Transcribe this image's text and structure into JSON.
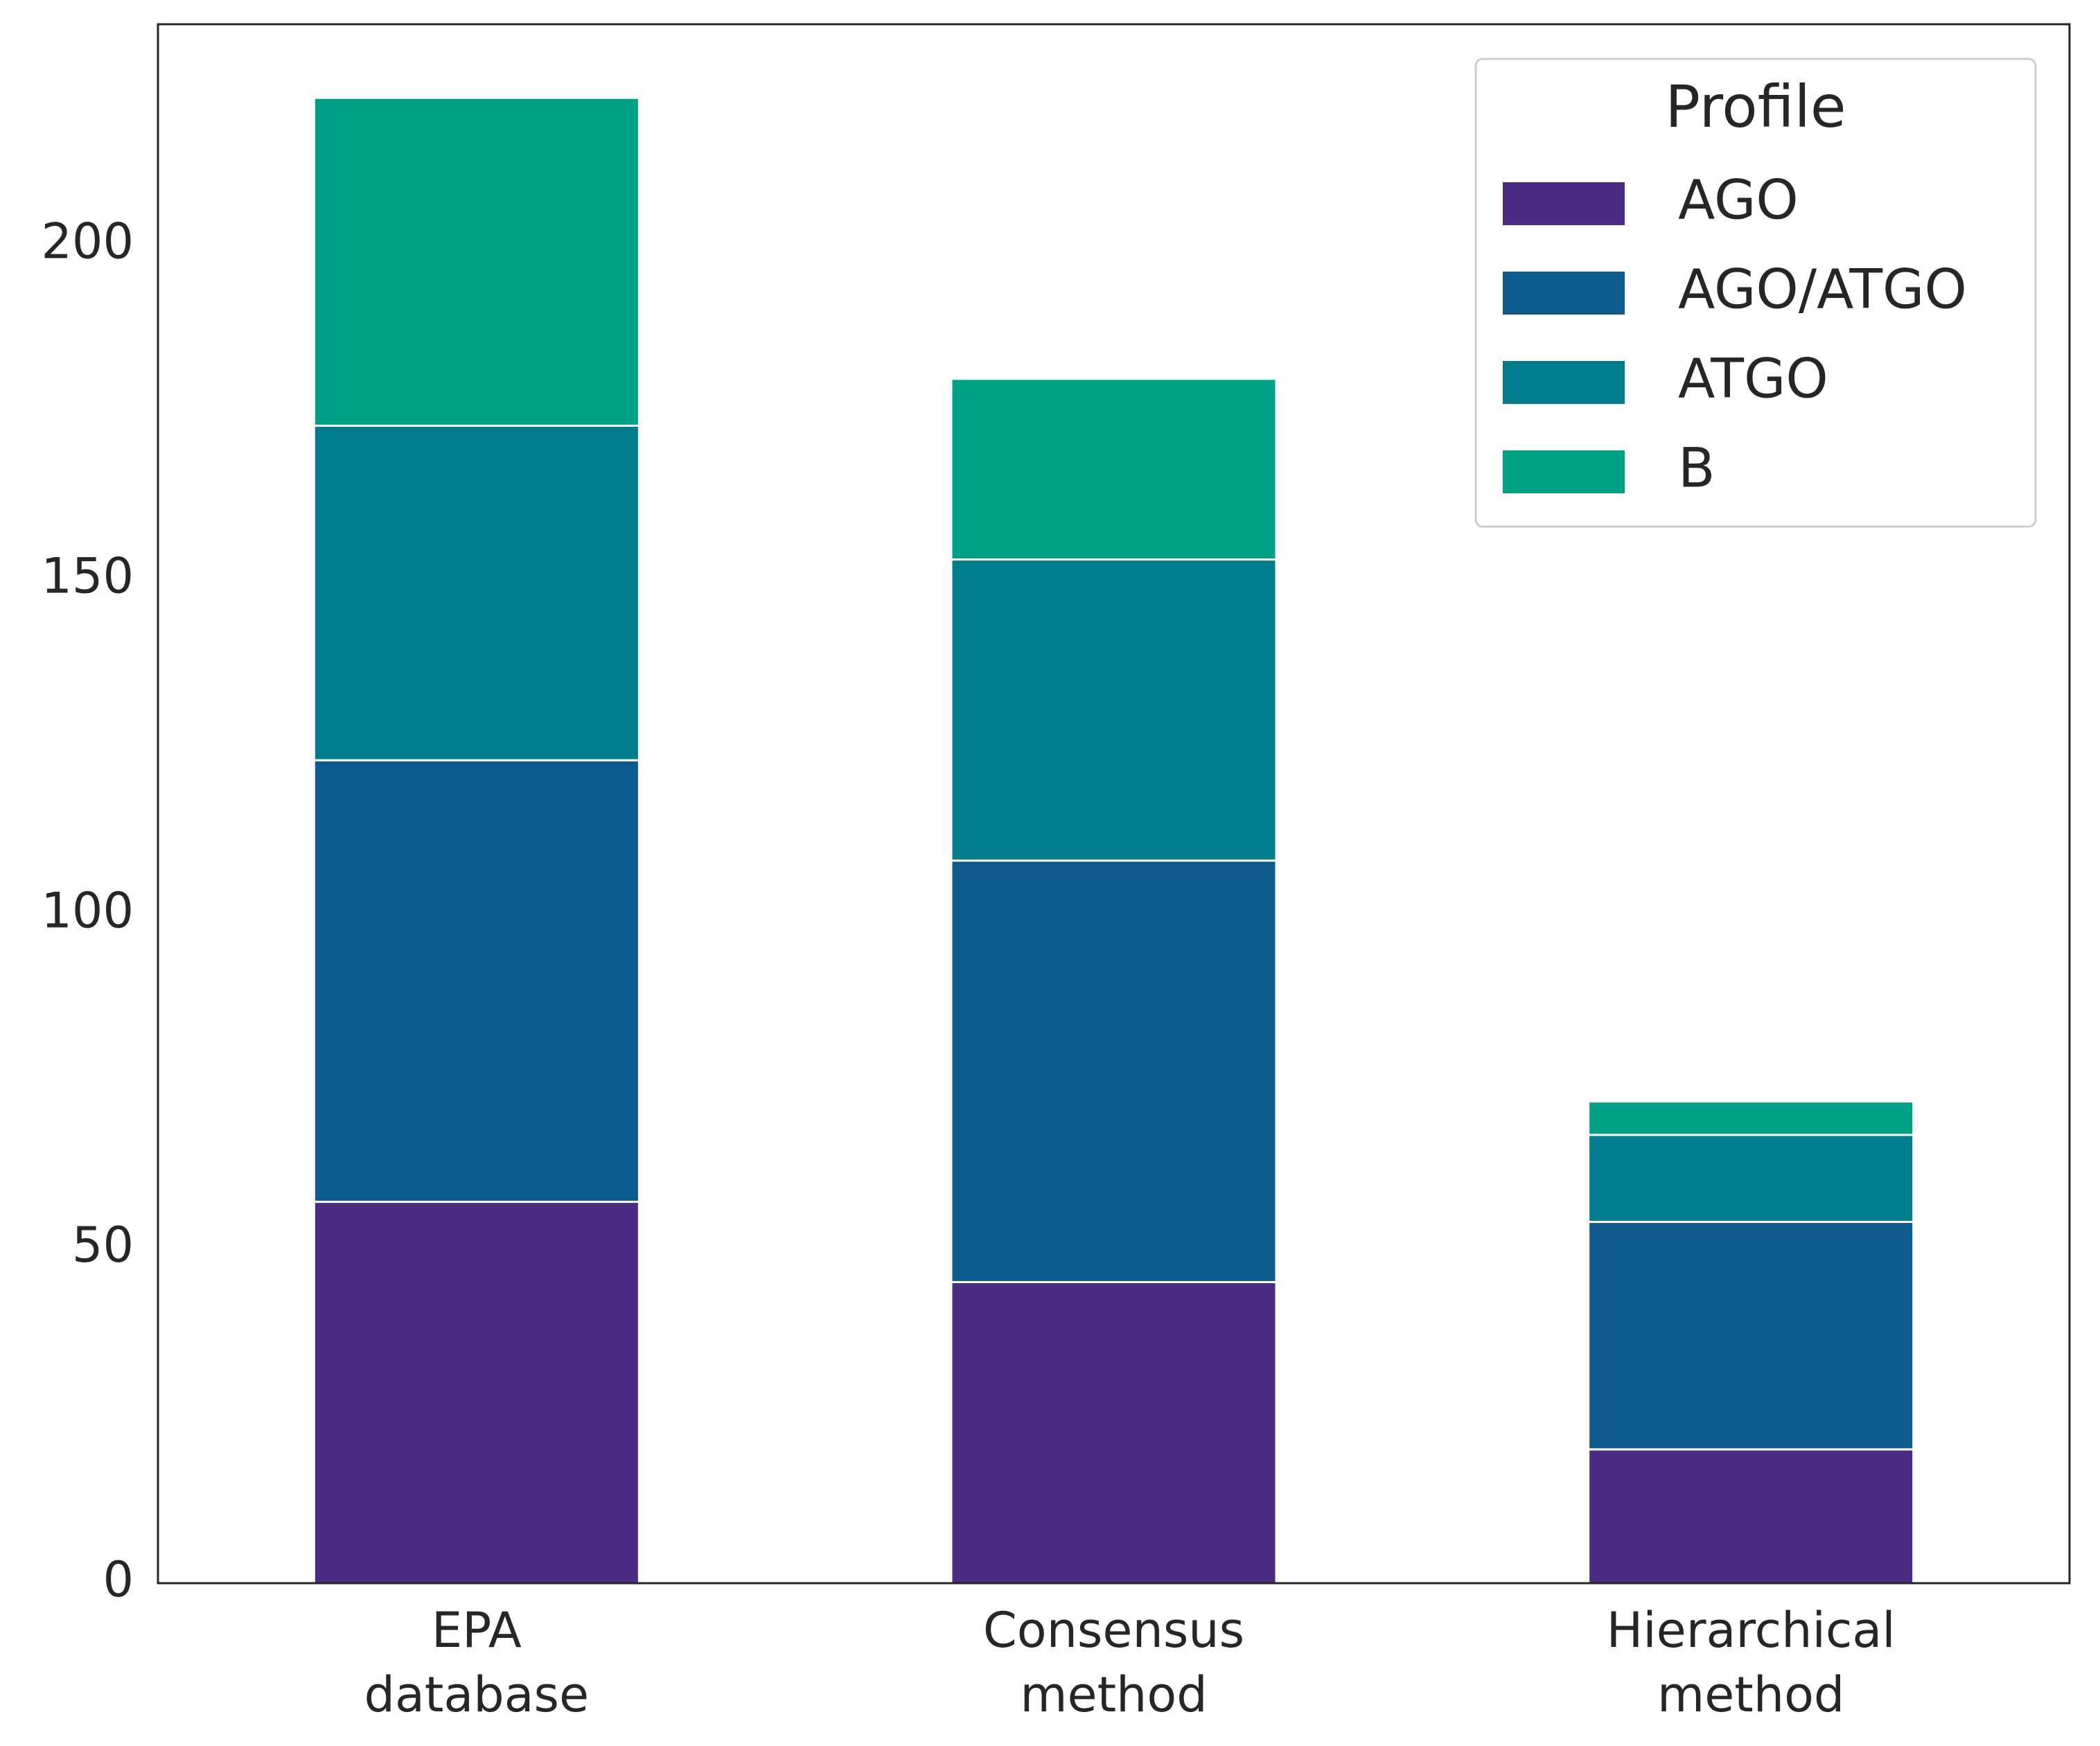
{
  "chart_data": {
    "type": "stacked-bar",
    "categories": [
      [
        "EPA",
        "database"
      ],
      [
        "Consensus",
        "method"
      ],
      [
        "Hierarchical",
        "method"
      ]
    ],
    "series": [
      {
        "name": "AGO",
        "color": "#4a2d82",
        "values": [
          57,
          45,
          20
        ]
      },
      {
        "name": "AGO/ATGO",
        "color": "#0e5a8c",
        "values": [
          66,
          63,
          34
        ]
      },
      {
        "name": "ATGO",
        "color": "#007d8c",
        "values": [
          50,
          45,
          13
        ]
      },
      {
        "name": "B",
        "color": "#00a085",
        "values": [
          49,
          27,
          5
        ]
      }
    ],
    "ylim": [
      0,
      233
    ],
    "yticks": [
      0,
      50,
      100,
      150,
      200
    ],
    "legend_title": "Profile",
    "legend_position": "upper right",
    "grid": false
  }
}
